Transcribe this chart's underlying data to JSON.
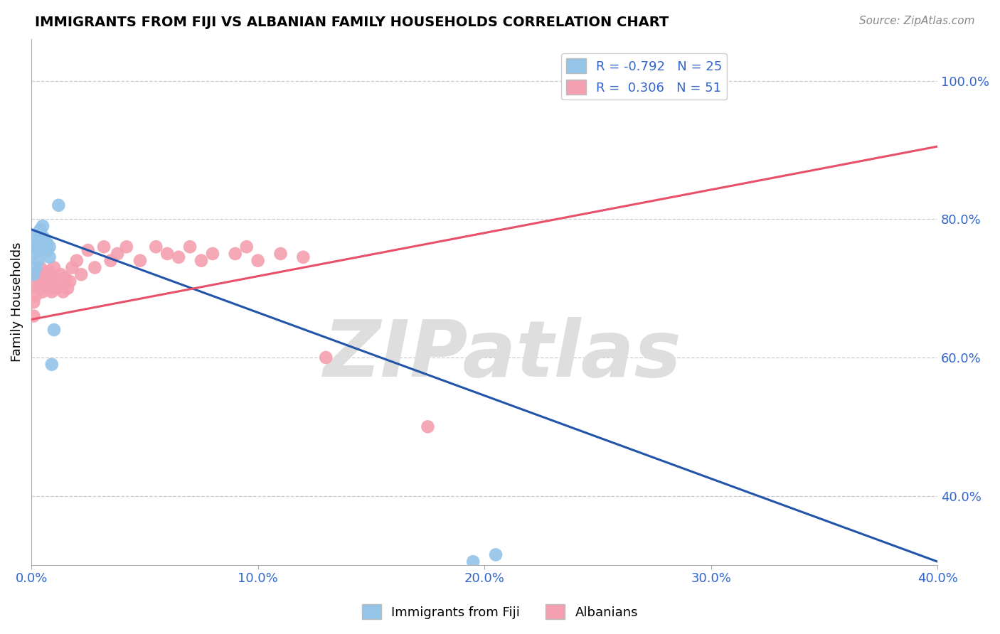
{
  "title": "IMMIGRANTS FROM FIJI VS ALBANIAN FAMILY HOUSEHOLDS CORRELATION CHART",
  "source": "Source: ZipAtlas.com",
  "ylabel": "Family Households",
  "fiji_color": "#94C4E8",
  "albanian_color": "#F4A0B0",
  "fiji_line_color": "#2255AA",
  "albanian_line_color": "#E8506A",
  "fiji_R": -0.792,
  "fiji_N": 25,
  "albanian_R": 0.306,
  "albanian_N": 51,
  "grid_color": "#CCCCCC",
  "background_color": "#FFFFFF",
  "watermark_text": "ZIPatlas",
  "watermark_color": "#DEDEDE",
  "xlim": [
    0.0,
    0.4
  ],
  "ylim": [
    0.3,
    1.06
  ],
  "right_yticks": [
    0.4,
    0.6,
    0.8,
    1.0
  ],
  "right_ytick_labels": [
    "40.0%",
    "60.0%",
    "80.0%",
    "100.0%"
  ],
  "xtick_vals": [
    0.0,
    0.1,
    0.2,
    0.3,
    0.4
  ],
  "xtick_labels": [
    "0.0%",
    "10.0%",
    "20.0%",
    "30.0%",
    "40.0%"
  ],
  "fiji_line_x0": 0.0,
  "fiji_line_y0": 0.785,
  "fiji_line_x1": 0.4,
  "fiji_line_y1": 0.305,
  "alb_line_x0": 0.0,
  "alb_line_y0": 0.655,
  "alb_line_x1": 0.4,
  "alb_line_y1": 0.905,
  "fiji_x": [
    0.001,
    0.001,
    0.002,
    0.002,
    0.002,
    0.003,
    0.003,
    0.003,
    0.004,
    0.004,
    0.004,
    0.005,
    0.005,
    0.005,
    0.006,
    0.006,
    0.007,
    0.007,
    0.008,
    0.008,
    0.009,
    0.01,
    0.012,
    0.195,
    0.205
  ],
  "fiji_y": [
    0.72,
    0.75,
    0.73,
    0.76,
    0.77,
    0.74,
    0.765,
    0.78,
    0.755,
    0.77,
    0.785,
    0.76,
    0.775,
    0.79,
    0.76,
    0.77,
    0.755,
    0.765,
    0.745,
    0.76,
    0.59,
    0.64,
    0.82,
    0.305,
    0.315
  ],
  "alb_x": [
    0.001,
    0.001,
    0.002,
    0.002,
    0.003,
    0.003,
    0.004,
    0.004,
    0.005,
    0.005,
    0.005,
    0.006,
    0.006,
    0.007,
    0.007,
    0.008,
    0.008,
    0.009,
    0.009,
    0.01,
    0.01,
    0.011,
    0.012,
    0.013,
    0.014,
    0.015,
    0.016,
    0.017,
    0.018,
    0.02,
    0.022,
    0.025,
    0.028,
    0.032,
    0.035,
    0.038,
    0.042,
    0.048,
    0.055,
    0.06,
    0.065,
    0.07,
    0.075,
    0.08,
    0.09,
    0.095,
    0.1,
    0.11,
    0.12,
    0.13,
    0.175
  ],
  "alb_y": [
    0.66,
    0.68,
    0.71,
    0.69,
    0.72,
    0.7,
    0.71,
    0.73,
    0.7,
    0.72,
    0.695,
    0.715,
    0.705,
    0.72,
    0.71,
    0.7,
    0.725,
    0.71,
    0.695,
    0.73,
    0.715,
    0.7,
    0.71,
    0.72,
    0.695,
    0.715,
    0.7,
    0.71,
    0.73,
    0.74,
    0.72,
    0.755,
    0.73,
    0.76,
    0.74,
    0.75,
    0.76,
    0.74,
    0.76,
    0.75,
    0.745,
    0.76,
    0.74,
    0.75,
    0.75,
    0.76,
    0.74,
    0.75,
    0.745,
    0.6,
    0.5
  ]
}
